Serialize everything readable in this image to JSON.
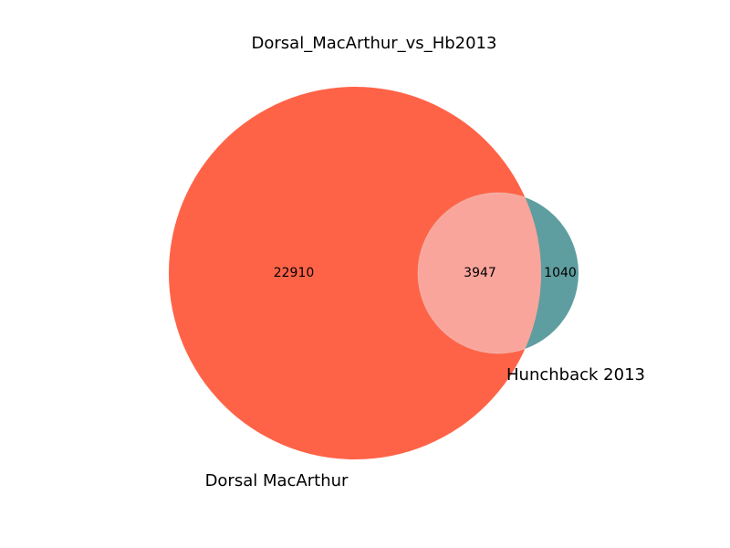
{
  "title": "Dorsal_MacArthur_vs_Hb2013",
  "sets": [
    {
      "name": "Dorsal MacArthur",
      "color": "#ff6347"
    },
    {
      "name": "Hunchback 2013",
      "color": "#5f9ea0"
    }
  ],
  "regions": {
    "only_a": "22910",
    "overlap": "3947",
    "only_b": "1040"
  },
  "overlap_color": "#faa59b",
  "chart_data": {
    "type": "venn",
    "title": "Dorsal_MacArthur_vs_Hb2013",
    "sets": [
      "Dorsal MacArthur",
      "Hunchback 2013"
    ],
    "values": {
      "Dorsal MacArthur only": 22910,
      "both": 3947,
      "Hunchback 2013 only": 1040
    }
  }
}
